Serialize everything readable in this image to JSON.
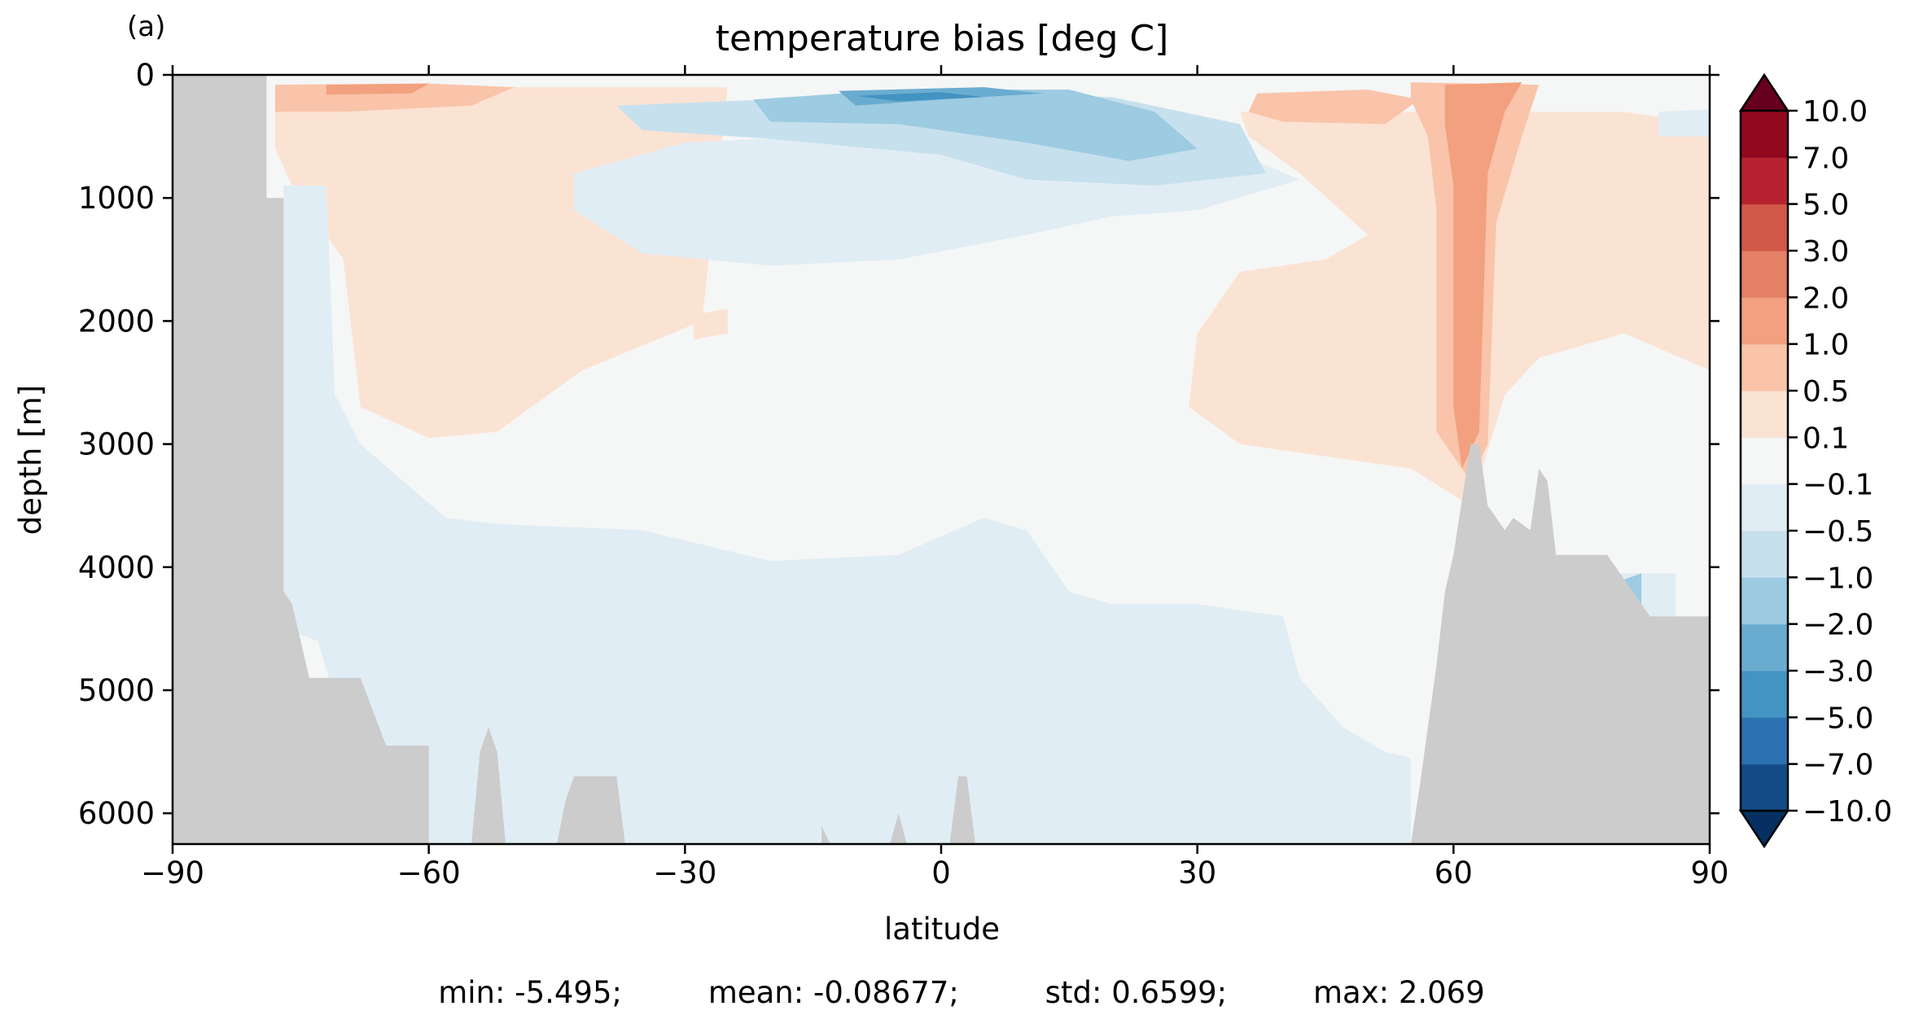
{
  "panel_label": "(a)",
  "chart_data": {
    "type": "heatmap",
    "title": "temperature bias [deg C]",
    "xlabel": "latitude",
    "ylabel": "depth [m]",
    "xlim": [
      -90,
      90
    ],
    "ylim": [
      6250,
      0
    ],
    "y_inverted": true,
    "x_ticks": [
      -90,
      -60,
      -30,
      0,
      30,
      60,
      90
    ],
    "x_tick_labels": [
      "−90",
      "−60",
      "−30",
      "0",
      "30",
      "60",
      "90"
    ],
    "y_ticks": [
      0,
      1000,
      2000,
      3000,
      4000,
      5000,
      6000
    ],
    "y_tick_labels": [
      "0",
      "1000",
      "2000",
      "3000",
      "4000",
      "5000",
      "6000"
    ],
    "grid": false,
    "land_color": "#cccccc",
    "colorbar": {
      "extend": "both",
      "levels": [
        -10.0,
        -7.0,
        -5.0,
        -3.0,
        -2.0,
        -1.0,
        -0.5,
        -0.1,
        0.1,
        0.5,
        1.0,
        2.0,
        3.0,
        5.0,
        7.0,
        10.0
      ],
      "tick_labels": [
        "−10.0",
        "−7.0",
        "−5.0",
        "−3.0",
        "−2.0",
        "−1.0",
        "−0.5",
        "−0.1",
        "0.1",
        "0.5",
        "1.0",
        "2.0",
        "3.0",
        "5.0",
        "7.0",
        "10.0"
      ],
      "colors": [
        "#053061",
        "#134b87",
        "#2c71b2",
        "#4393c3",
        "#6aacd0",
        "#9dcbe1",
        "#c7e0ed",
        "#e1edf4",
        "#f5f6f6",
        "#fbe3d4",
        "#f9c4a9",
        "#f2a07f",
        "#e48066",
        "#d25849",
        "#b72230",
        "#91091e",
        "#67001f"
      ]
    },
    "stats": {
      "min": "-5.495",
      "mean": "-0.08677",
      "std": "0.6599",
      "max": "2.069"
    },
    "contour_regions": [
      {
        "level": "0.1 to 0.5",
        "points": [
          [
            -78,
            100
          ],
          [
            -25,
            100
          ],
          [
            -28,
            2000
          ],
          [
            -42,
            2400
          ],
          [
            -52,
            2900
          ],
          [
            -60,
            2950
          ],
          [
            -68,
            2700
          ],
          [
            -70,
            1500
          ],
          [
            -76,
            900
          ],
          [
            -78,
            600
          ]
        ]
      },
      {
        "level": "0.1 to 0.5",
        "points": [
          [
            35,
            300
          ],
          [
            80,
            300
          ],
          [
            90,
            400
          ],
          [
            90,
            2400
          ],
          [
            80,
            2100
          ],
          [
            70,
            2300
          ],
          [
            66,
            2600
          ],
          [
            62,
            3500
          ],
          [
            55,
            3200
          ],
          [
            45,
            3100
          ],
          [
            35,
            3000
          ],
          [
            29,
            2700
          ],
          [
            30,
            2100
          ],
          [
            35,
            1600
          ],
          [
            45,
            1500
          ],
          [
            50,
            1300
          ],
          [
            42,
            800
          ],
          [
            36,
            500
          ]
        ]
      },
      {
        "level": "0.1 to 0.5",
        "points": [
          [
            -78,
            4350
          ],
          [
            -76,
            4350
          ],
          [
            -76,
            4700
          ],
          [
            -78,
            4700
          ]
        ]
      },
      {
        "level": "0.1 to 0.5",
        "points": [
          [
            -12,
            5700
          ],
          [
            -8,
            5700
          ],
          [
            -9,
            6250
          ],
          [
            -13,
            6250
          ]
        ]
      },
      {
        "level": "0.1 to 0.5",
        "points": [
          [
            -4,
            5800
          ],
          [
            3,
            5650
          ],
          [
            4,
            6250
          ],
          [
            -5,
            6250
          ]
        ]
      },
      {
        "level": "0.1 to 0.5",
        "points": [
          [
            -29,
            1950
          ],
          [
            -25,
            1900
          ],
          [
            -25,
            2100
          ],
          [
            -29,
            2150
          ]
        ]
      },
      {
        "level": "-0.1 to -0.5",
        "points": [
          [
            -77,
            900
          ],
          [
            -72,
            900
          ],
          [
            -71,
            2600
          ],
          [
            -68,
            3000
          ],
          [
            -63,
            3300
          ],
          [
            -58,
            3600
          ],
          [
            -52,
            3650
          ],
          [
            -35,
            3700
          ],
          [
            -20,
            3950
          ],
          [
            -5,
            3900
          ],
          [
            5,
            3600
          ],
          [
            10,
            3700
          ],
          [
            15,
            4200
          ],
          [
            20,
            4300
          ],
          [
            30,
            4300
          ],
          [
            40,
            4400
          ],
          [
            42,
            4900
          ],
          [
            47,
            5300
          ],
          [
            52,
            5500
          ],
          [
            55,
            5550
          ],
          [
            55,
            6250
          ],
          [
            -60,
            6250
          ],
          [
            -60,
            5700
          ],
          [
            -65,
            5450
          ],
          [
            -70,
            5300
          ],
          [
            -73,
            4600
          ],
          [
            -77,
            4500
          ],
          [
            -77,
            3200
          ]
        ]
      },
      {
        "level": "-0.1 to -0.5",
        "points": [
          [
            -43,
            800
          ],
          [
            -30,
            550
          ],
          [
            0,
            450
          ],
          [
            30,
            500
          ],
          [
            42,
            850
          ],
          [
            30,
            1100
          ],
          [
            20,
            1150
          ],
          [
            10,
            1300
          ],
          [
            -5,
            1500
          ],
          [
            -20,
            1550
          ],
          [
            -35,
            1450
          ],
          [
            -43,
            1100
          ]
        ]
      },
      {
        "level": "-0.1 to -0.5",
        "points": [
          [
            84,
            300
          ],
          [
            90,
            280
          ],
          [
            90,
            500
          ],
          [
            84,
            500
          ]
        ]
      },
      {
        "level": "-0.1 to -0.5",
        "points": [
          [
            78,
            4050
          ],
          [
            86,
            4050
          ],
          [
            86,
            4400
          ],
          [
            78,
            4400
          ]
        ]
      },
      {
        "level": "-0.5 to -1.0",
        "points": [
          [
            -38,
            250
          ],
          [
            -20,
            200
          ],
          [
            0,
            150
          ],
          [
            20,
            180
          ],
          [
            35,
            400
          ],
          [
            38,
            800
          ],
          [
            25,
            900
          ],
          [
            10,
            850
          ],
          [
            0,
            650
          ],
          [
            -20,
            520
          ],
          [
            -35,
            450
          ]
        ]
      },
      {
        "level": "-1.0 to -2.0",
        "points": [
          [
            -22,
            200
          ],
          [
            -5,
            120
          ],
          [
            15,
            120
          ],
          [
            25,
            300
          ],
          [
            30,
            600
          ],
          [
            22,
            700
          ],
          [
            10,
            550
          ],
          [
            -5,
            400
          ],
          [
            -20,
            380
          ]
        ]
      },
      {
        "level": "-2.0 to -3.0",
        "points": [
          [
            -12,
            130
          ],
          [
            5,
            100
          ],
          [
            12,
            150
          ],
          [
            0,
            200
          ],
          [
            -10,
            250
          ]
        ]
      },
      {
        "level": "-3.0 to -5.0",
        "points": [
          [
            -10,
            170
          ],
          [
            0,
            140
          ],
          [
            5,
            180
          ],
          [
            -5,
            215
          ]
        ]
      },
      {
        "level": "-1.0 to -2.0",
        "points": [
          [
            80,
            4100
          ],
          [
            82,
            4050
          ],
          [
            82,
            4500
          ],
          [
            80,
            4550
          ]
        ]
      },
      {
        "level": "0.5 to 1.0",
        "points": [
          [
            -78,
            80
          ],
          [
            -60,
            70
          ],
          [
            -50,
            100
          ],
          [
            -55,
            250
          ],
          [
            -70,
            300
          ],
          [
            -78,
            300
          ]
        ]
      },
      {
        "level": "0.5 to 1.0",
        "points": [
          [
            55,
            60
          ],
          [
            70,
            80
          ],
          [
            68,
            500
          ],
          [
            65,
            1200
          ],
          [
            64,
            3000
          ],
          [
            62,
            3300
          ],
          [
            58,
            2900
          ],
          [
            58,
            1100
          ],
          [
            57,
            500
          ],
          [
            55,
            200
          ]
        ]
      },
      {
        "level": "0.5 to 1.0",
        "points": [
          [
            37,
            150
          ],
          [
            50,
            120
          ],
          [
            56,
            200
          ],
          [
            52,
            400
          ],
          [
            40,
            380
          ],
          [
            36,
            300
          ]
        ]
      },
      {
        "level": "1.0 to 2.0",
        "points": [
          [
            -72,
            80
          ],
          [
            -60,
            70
          ],
          [
            -62,
            150
          ],
          [
            -72,
            160
          ]
        ]
      },
      {
        "level": "1.0 to 2.0",
        "points": [
          [
            59,
            80
          ],
          [
            68,
            60
          ],
          [
            66,
            300
          ],
          [
            64,
            800
          ],
          [
            63,
            2900
          ],
          [
            61,
            3200
          ],
          [
            60,
            2700
          ],
          [
            60,
            900
          ],
          [
            59,
            400
          ]
        ]
      }
    ],
    "land_mask": [
      [
        -90,
        0
      ],
      [
        -79,
        0
      ],
      [
        -79,
        1000
      ],
      [
        -77,
        1000
      ],
      [
        -77,
        3500
      ],
      [
        -77,
        4200
      ],
      [
        -76,
        4300
      ],
      [
        -74,
        4900
      ],
      [
        -68,
        4900
      ],
      [
        -65,
        5450
      ],
      [
        -60,
        5450
      ],
      [
        -60,
        6250
      ],
      [
        -90,
        6250
      ]
    ],
    "land_mask_north": [
      [
        55,
        6250
      ],
      [
        56,
        5800
      ],
      [
        57,
        5300
      ],
      [
        58,
        4800
      ],
      [
        59,
        4200
      ],
      [
        60,
        3900
      ],
      [
        62,
        3000
      ],
      [
        63,
        3000
      ],
      [
        64,
        3500
      ],
      [
        66,
        3700
      ],
      [
        67,
        3600
      ],
      [
        69,
        3700
      ],
      [
        70,
        3200
      ],
      [
        71,
        3300
      ],
      [
        72,
        3900
      ],
      [
        74,
        3900
      ],
      [
        76,
        3900
      ],
      [
        78,
        3900
      ],
      [
        80,
        4100
      ],
      [
        83,
        4400
      ],
      [
        86,
        4400
      ],
      [
        90,
        4400
      ],
      [
        90,
        6250
      ]
    ],
    "seamounts": [
      [
        [
          -55,
          6250
        ],
        [
          -54,
          5500
        ],
        [
          -53,
          5300
        ],
        [
          -52,
          5500
        ],
        [
          -51,
          6250
        ]
      ],
      [
        [
          -45,
          6250
        ],
        [
          -44,
          5900
        ],
        [
          -43,
          5700
        ],
        [
          -38,
          5700
        ],
        [
          -37,
          6250
        ]
      ],
      [
        [
          1,
          6250
        ],
        [
          2,
          5700
        ],
        [
          3,
          5700
        ],
        [
          4,
          6250
        ]
      ],
      [
        [
          -14,
          6250
        ],
        [
          -14,
          6100
        ],
        [
          -13,
          6250
        ]
      ],
      [
        [
          -6,
          6250
        ],
        [
          -5,
          6000
        ],
        [
          -4,
          6250
        ]
      ]
    ]
  }
}
